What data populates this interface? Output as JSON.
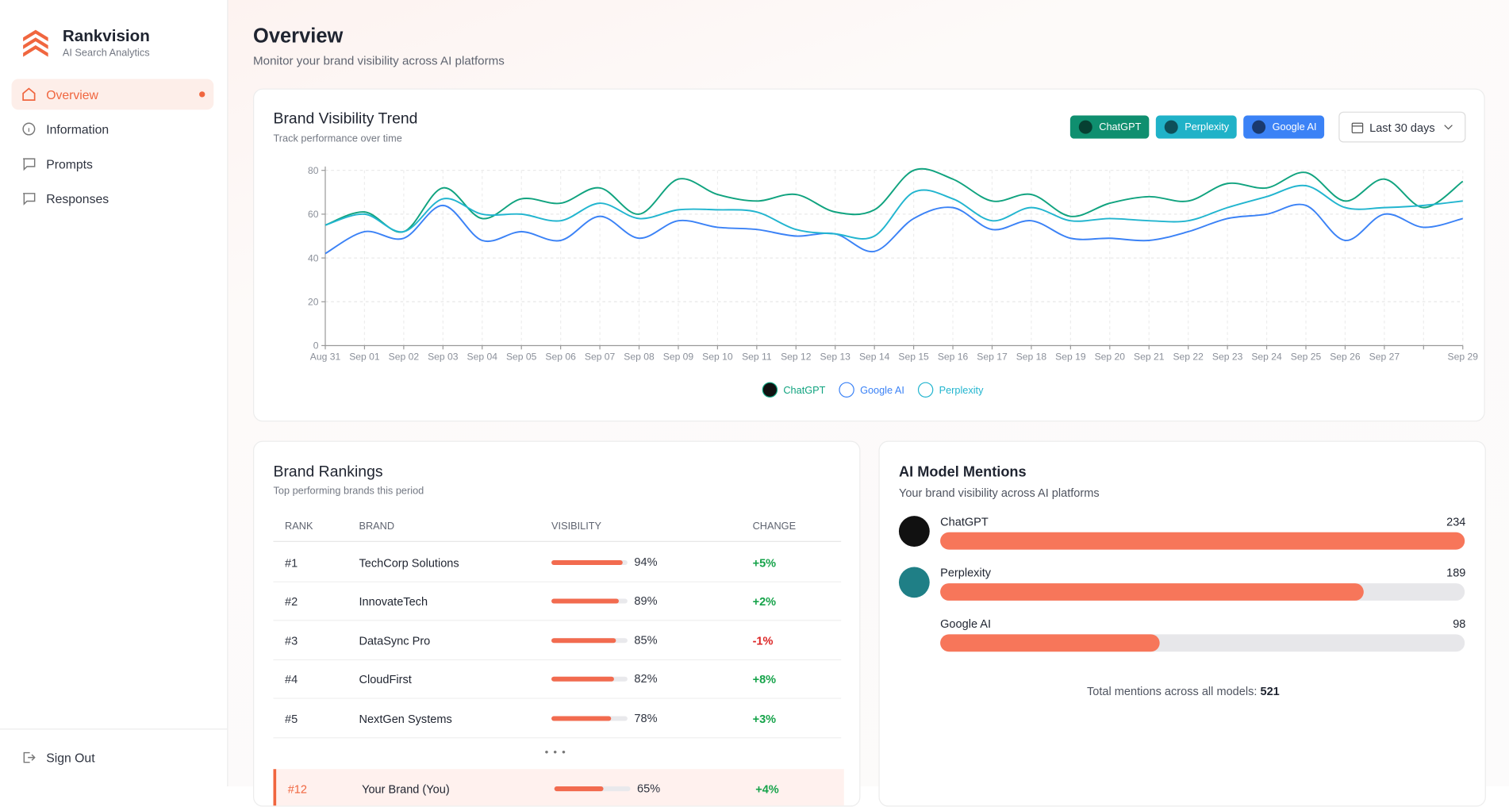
{
  "sidebar": {
    "brand": "Rankvision",
    "tagline": "AI Search Analytics",
    "nav": [
      "Overview",
      "Information",
      "Prompts",
      "Responses"
    ],
    "sign_out": "Sign Out"
  },
  "header": {
    "title": "Overview",
    "subtitle": "Monitor your brand visibility across AI platforms"
  },
  "chart_data": {
    "type": "line",
    "title": "Brand Visibility Trend",
    "subtitle": "Track performance over time",
    "range_selector": "Last 30 days",
    "categories": [
      "Aug 31",
      "Sep 01",
      "Sep 02",
      "Sep 03",
      "Sep 04",
      "Sep 05",
      "Sep 06",
      "Sep 07",
      "Sep 08",
      "Sep 09",
      "Sep 10",
      "Sep 11",
      "Sep 12",
      "Sep 13",
      "Sep 14",
      "Sep 15",
      "Sep 16",
      "Sep 17",
      "Sep 18",
      "Sep 19",
      "Sep 20",
      "Sep 21",
      "Sep 22",
      "Sep 23",
      "Sep 24",
      "Sep 25",
      "Sep 26",
      "Sep 27",
      null,
      "Sep 29"
    ],
    "series": [
      {
        "name": "ChatGPT",
        "color": "#10a37f",
        "button_color": "#0f8f6f",
        "values": [
          55,
          61,
          52,
          72,
          58,
          67,
          65,
          72,
          60,
          76,
          69,
          66,
          69,
          61,
          62,
          80,
          76,
          66,
          69,
          59,
          65,
          68,
          66,
          74,
          72,
          79,
          66,
          76,
          63,
          75
        ]
      },
      {
        "name": "Google AI",
        "color": "#3b82f6",
        "button_color": "#3b82f6",
        "values": [
          42,
          52,
          49,
          64,
          48,
          52,
          48,
          59,
          49,
          57,
          54,
          53,
          50,
          51,
          43,
          58,
          63,
          53,
          57,
          49,
          49,
          48,
          52,
          58,
          60,
          64,
          48,
          60,
          54,
          58
        ]
      },
      {
        "name": "Perplexity",
        "color": "#22b5cf",
        "button_color": "#20b2c8",
        "values": [
          55,
          60,
          52,
          67,
          60,
          60,
          57,
          65,
          58,
          62,
          62,
          61,
          53,
          51,
          50,
          70,
          67,
          57,
          63,
          57,
          58,
          57,
          57,
          63,
          68,
          73,
          63,
          63,
          64,
          66
        ]
      }
    ],
    "ylim": [
      0,
      80
    ],
    "yticks": [
      0,
      20,
      40,
      60,
      80
    ],
    "grid": true
  },
  "rankings": {
    "title": "Brand Rankings",
    "subtitle": "Top performing brands this period",
    "columns": [
      "RANK",
      "BRAND",
      "VISIBILITY",
      "CHANGE"
    ],
    "rows": [
      {
        "rank": "#1",
        "brand": "TechCorp Solutions",
        "visibility": 94,
        "visibility_label": "94%",
        "change": "+5%"
      },
      {
        "rank": "#2",
        "brand": "InnovateTech",
        "visibility": 89,
        "visibility_label": "89%",
        "change": "+2%"
      },
      {
        "rank": "#3",
        "brand": "DataSync Pro",
        "visibility": 85,
        "visibility_label": "85%",
        "change": "-1%"
      },
      {
        "rank": "#4",
        "brand": "CloudFirst",
        "visibility": 82,
        "visibility_label": "82%",
        "change": "+8%"
      },
      {
        "rank": "#5",
        "brand": "NextGen Systems",
        "visibility": 78,
        "visibility_label": "78%",
        "change": "+3%"
      }
    ],
    "ellipsis": "• • •",
    "own_row": {
      "rank": "#12",
      "brand": "Your Brand (You)",
      "visibility": 65,
      "visibility_label": "65%",
      "change": "+4%"
    }
  },
  "mentions": {
    "title": "AI Model Mentions",
    "subtitle": "Your brand visibility across AI platforms",
    "models": [
      {
        "name": "ChatGPT",
        "value": 234
      },
      {
        "name": "Perplexity",
        "value": 189
      },
      {
        "name": "Google AI",
        "value": 98
      }
    ],
    "total_label": "Total mentions across all models:",
    "total": 521
  }
}
